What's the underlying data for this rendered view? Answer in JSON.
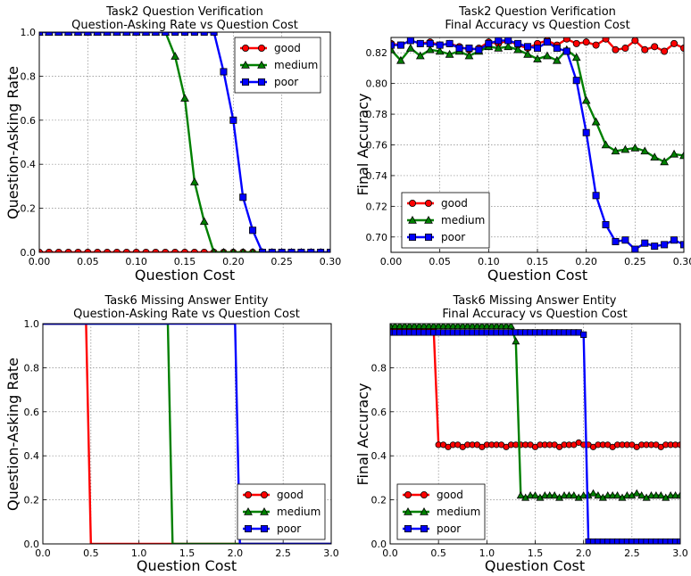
{
  "figure": {
    "background": "#ffffff"
  },
  "chart_data": [
    {
      "type": "line",
      "title": "Task2 Question Verification",
      "subtitle": "Question-Asking Rate vs Question Cost",
      "xlabel": "Question Cost",
      "ylabel": "Question-Asking Rate",
      "xlim": [
        0,
        0.3
      ],
      "ylim": [
        0,
        1.0
      ],
      "xticks": [
        "0.00",
        "0.05",
        "0.10",
        "0.15",
        "0.20",
        "0.25",
        "0.30"
      ],
      "yticks": [
        "0.0",
        "0.2",
        "0.4",
        "0.6",
        "0.8",
        "1.0"
      ],
      "grid": true,
      "legend": "top-right",
      "x": [
        0,
        0.01,
        0.02,
        0.03,
        0.04,
        0.05,
        0.06,
        0.07,
        0.08,
        0.09,
        0.1,
        0.11,
        0.12,
        0.13,
        0.14,
        0.15,
        0.16,
        0.17,
        0.18,
        0.19,
        0.2,
        0.21,
        0.22,
        0.23,
        0.24,
        0.25,
        0.26,
        0.27,
        0.28,
        0.29,
        0.3
      ],
      "series": [
        {
          "name": "good",
          "color": "#ff0000",
          "marker": "circle",
          "values": [
            0,
            0,
            0,
            0,
            0,
            0,
            0,
            0,
            0,
            0,
            0,
            0,
            0,
            0,
            0,
            0,
            0,
            0,
            0,
            0,
            0,
            0,
            0,
            0,
            0,
            0,
            0,
            0,
            0,
            0,
            0
          ]
        },
        {
          "name": "medium",
          "color": "#008000",
          "marker": "triangle",
          "values": [
            1,
            1,
            1,
            1,
            1,
            1,
            1,
            1,
            1,
            1,
            1,
            1,
            1,
            1,
            0.89,
            0.7,
            0.32,
            0.14,
            0,
            0,
            0,
            0,
            0,
            0,
            0,
            0,
            0,
            0,
            0,
            0,
            0
          ]
        },
        {
          "name": "poor",
          "color": "#0000ff",
          "marker": "square",
          "values": [
            1,
            1,
            1,
            1,
            1,
            1,
            1,
            1,
            1,
            1,
            1,
            1,
            1,
            1,
            1,
            1,
            1,
            1,
            1,
            0.82,
            0.6,
            0.25,
            0.1,
            0,
            0,
            0,
            0,
            0,
            0,
            0,
            0
          ]
        }
      ]
    },
    {
      "type": "line",
      "title": "Task2 Question Verification",
      "subtitle": "Final Accuracy vs Question Cost",
      "xlabel": "Question Cost",
      "ylabel": "Final Accuracy",
      "xlim": [
        0,
        0.3
      ],
      "ylim": [
        0.69,
        0.83
      ],
      "xticks": [
        "0.00",
        "0.05",
        "0.10",
        "0.15",
        "0.20",
        "0.25",
        "0.30"
      ],
      "yticks": [
        "0.70",
        "0.72",
        "0.74",
        "0.76",
        "0.78",
        "0.80",
        "0.82"
      ],
      "grid": true,
      "legend": "bottom-left",
      "x": [
        0,
        0.01,
        0.02,
        0.03,
        0.04,
        0.05,
        0.06,
        0.07,
        0.08,
        0.09,
        0.1,
        0.11,
        0.12,
        0.13,
        0.14,
        0.15,
        0.16,
        0.17,
        0.18,
        0.19,
        0.2,
        0.21,
        0.22,
        0.23,
        0.24,
        0.25,
        0.26,
        0.27,
        0.28,
        0.29,
        0.3
      ],
      "series": [
        {
          "name": "good",
          "color": "#ff0000",
          "marker": "circle",
          "values": [
            0.826,
            0.825,
            0.828,
            0.826,
            0.827,
            0.825,
            0.826,
            0.824,
            0.822,
            0.823,
            0.827,
            0.826,
            0.828,
            0.825,
            0.823,
            0.826,
            0.828,
            0.825,
            0.829,
            0.826,
            0.827,
            0.825,
            0.829,
            0.822,
            0.823,
            0.828,
            0.822,
            0.824,
            0.821,
            0.826,
            0.823
          ]
        },
        {
          "name": "medium",
          "color": "#008000",
          "marker": "triangle",
          "values": [
            0.822,
            0.815,
            0.823,
            0.818,
            0.822,
            0.821,
            0.819,
            0.821,
            0.818,
            0.821,
            0.824,
            0.823,
            0.824,
            0.822,
            0.819,
            0.816,
            0.818,
            0.815,
            0.822,
            0.817,
            0.789,
            0.775,
            0.76,
            0.756,
            0.757,
            0.758,
            0.756,
            0.752,
            0.749,
            0.754,
            0.753
          ]
        },
        {
          "name": "poor",
          "color": "#0000ff",
          "marker": "square",
          "values": [
            0.825,
            0.825,
            0.828,
            0.826,
            0.826,
            0.825,
            0.826,
            0.823,
            0.823,
            0.822,
            0.826,
            0.828,
            0.828,
            0.826,
            0.824,
            0.823,
            0.827,
            0.823,
            0.821,
            0.802,
            0.768,
            0.727,
            0.708,
            0.697,
            0.698,
            0.692,
            0.696,
            0.694,
            0.695,
            0.698,
            0.695
          ]
        }
      ]
    },
    {
      "type": "line",
      "title": "Task6 Missing Answer Entity",
      "subtitle": "Question-Asking Rate vs Question Cost",
      "xlabel": "Question Cost",
      "ylabel": "Question-Asking Rate",
      "xlim": [
        0,
        3.0
      ],
      "ylim": [
        0,
        1.0
      ],
      "xticks": [
        "0.0",
        "0.5",
        "1.0",
        "1.5",
        "2.0",
        "2.5",
        "3.0"
      ],
      "yticks": [
        "0.0",
        "0.2",
        "0.4",
        "0.6",
        "0.8",
        "1.0"
      ],
      "grid": true,
      "legend": "bottom-right",
      "x": [
        0,
        0.45,
        0.5,
        0.55,
        1.0,
        1.3,
        1.35,
        1.4,
        1.5,
        2.0,
        2.05,
        2.5,
        3.0
      ],
      "series": [
        {
          "name": "good",
          "color": "#ff0000",
          "marker": "none",
          "values": [
            1,
            1,
            0,
            0,
            0,
            0,
            0,
            0,
            0,
            0,
            0,
            0,
            0
          ]
        },
        {
          "name": "medium",
          "color": "#008000",
          "marker": "none",
          "values": [
            1,
            1,
            1,
            1,
            1,
            1,
            0,
            0,
            0,
            0,
            0,
            0,
            0
          ]
        },
        {
          "name": "poor",
          "color": "#0000ff",
          "marker": "none",
          "values": [
            1,
            1,
            1,
            1,
            1,
            1,
            1,
            1,
            1,
            1,
            0,
            0,
            0
          ]
        }
      ]
    },
    {
      "type": "line",
      "title": "Task6 Missing Answer Entity",
      "subtitle": "Final Accuracy vs Question Cost",
      "xlabel": "Question Cost",
      "ylabel": "Final Accuracy",
      "xlim": [
        0,
        3.0
      ],
      "ylim": [
        0,
        1.0
      ],
      "xticks": [
        "0.0",
        "0.5",
        "1.0",
        "1.5",
        "2.0",
        "2.5",
        "3.0"
      ],
      "yticks": [
        "0.0",
        "0.2",
        "0.4",
        "0.6",
        "0.8"
      ],
      "grid": true,
      "legend": "bottom-left",
      "x": [
        0,
        0.05,
        0.1,
        0.15,
        0.2,
        0.25,
        0.3,
        0.35,
        0.4,
        0.45,
        0.5,
        0.55,
        0.6,
        0.65,
        0.7,
        0.75,
        0.8,
        0.85,
        0.9,
        0.95,
        1.0,
        1.05,
        1.1,
        1.15,
        1.2,
        1.25,
        1.3,
        1.35,
        1.4,
        1.45,
        1.5,
        1.55,
        1.6,
        1.65,
        1.7,
        1.75,
        1.8,
        1.85,
        1.9,
        1.95,
        2.0,
        2.05,
        2.1,
        2.15,
        2.2,
        2.25,
        2.3,
        2.35,
        2.4,
        2.45,
        2.5,
        2.55,
        2.6,
        2.65,
        2.7,
        2.75,
        2.8,
        2.85,
        2.9,
        2.95,
        3.0
      ],
      "series": [
        {
          "name": "good",
          "color": "#ff0000",
          "marker": "circle",
          "values": [
            0.97,
            0.97,
            0.97,
            0.97,
            0.97,
            0.97,
            0.97,
            0.97,
            0.97,
            0.97,
            0.45,
            0.45,
            0.44,
            0.45,
            0.45,
            0.44,
            0.45,
            0.45,
            0.45,
            0.44,
            0.45,
            0.45,
            0.45,
            0.45,
            0.44,
            0.45,
            0.45,
            0.45,
            0.45,
            0.45,
            0.44,
            0.45,
            0.45,
            0.45,
            0.45,
            0.44,
            0.45,
            0.45,
            0.45,
            0.46,
            0.45,
            0.45,
            0.44,
            0.45,
            0.45,
            0.45,
            0.44,
            0.45,
            0.45,
            0.45,
            0.45,
            0.44,
            0.45,
            0.45,
            0.45,
            0.45,
            0.44,
            0.45,
            0.45,
            0.45,
            0.45
          ]
        },
        {
          "name": "medium",
          "color": "#008000",
          "marker": "triangle",
          "values": [
            0.99,
            0.99,
            0.99,
            0.99,
            0.99,
            0.99,
            0.99,
            0.99,
            0.99,
            0.99,
            0.99,
            0.99,
            0.99,
            0.99,
            0.99,
            0.99,
            0.99,
            0.99,
            0.99,
            0.99,
            0.99,
            0.99,
            0.99,
            0.99,
            0.99,
            0.99,
            0.92,
            0.22,
            0.21,
            0.22,
            0.22,
            0.21,
            0.22,
            0.22,
            0.22,
            0.21,
            0.22,
            0.22,
            0.22,
            0.21,
            0.22,
            0.22,
            0.23,
            0.22,
            0.21,
            0.22,
            0.22,
            0.22,
            0.21,
            0.22,
            0.22,
            0.23,
            0.22,
            0.21,
            0.22,
            0.22,
            0.22,
            0.21,
            0.22,
            0.22,
            0.22
          ]
        },
        {
          "name": "poor",
          "color": "#0000ff",
          "marker": "square",
          "values": [
            0.96,
            0.96,
            0.96,
            0.96,
            0.96,
            0.96,
            0.96,
            0.96,
            0.96,
            0.96,
            0.96,
            0.96,
            0.96,
            0.96,
            0.96,
            0.96,
            0.96,
            0.96,
            0.96,
            0.96,
            0.96,
            0.96,
            0.96,
            0.96,
            0.96,
            0.96,
            0.96,
            0.96,
            0.96,
            0.96,
            0.96,
            0.96,
            0.96,
            0.96,
            0.96,
            0.96,
            0.96,
            0.96,
            0.96,
            0.96,
            0.95,
            0.01,
            0.01,
            0.01,
            0.01,
            0.01,
            0.01,
            0.01,
            0.01,
            0.01,
            0.01,
            0.01,
            0.01,
            0.01,
            0.01,
            0.01,
            0.01,
            0.01,
            0.01,
            0.01,
            0.01
          ]
        }
      ]
    }
  ]
}
